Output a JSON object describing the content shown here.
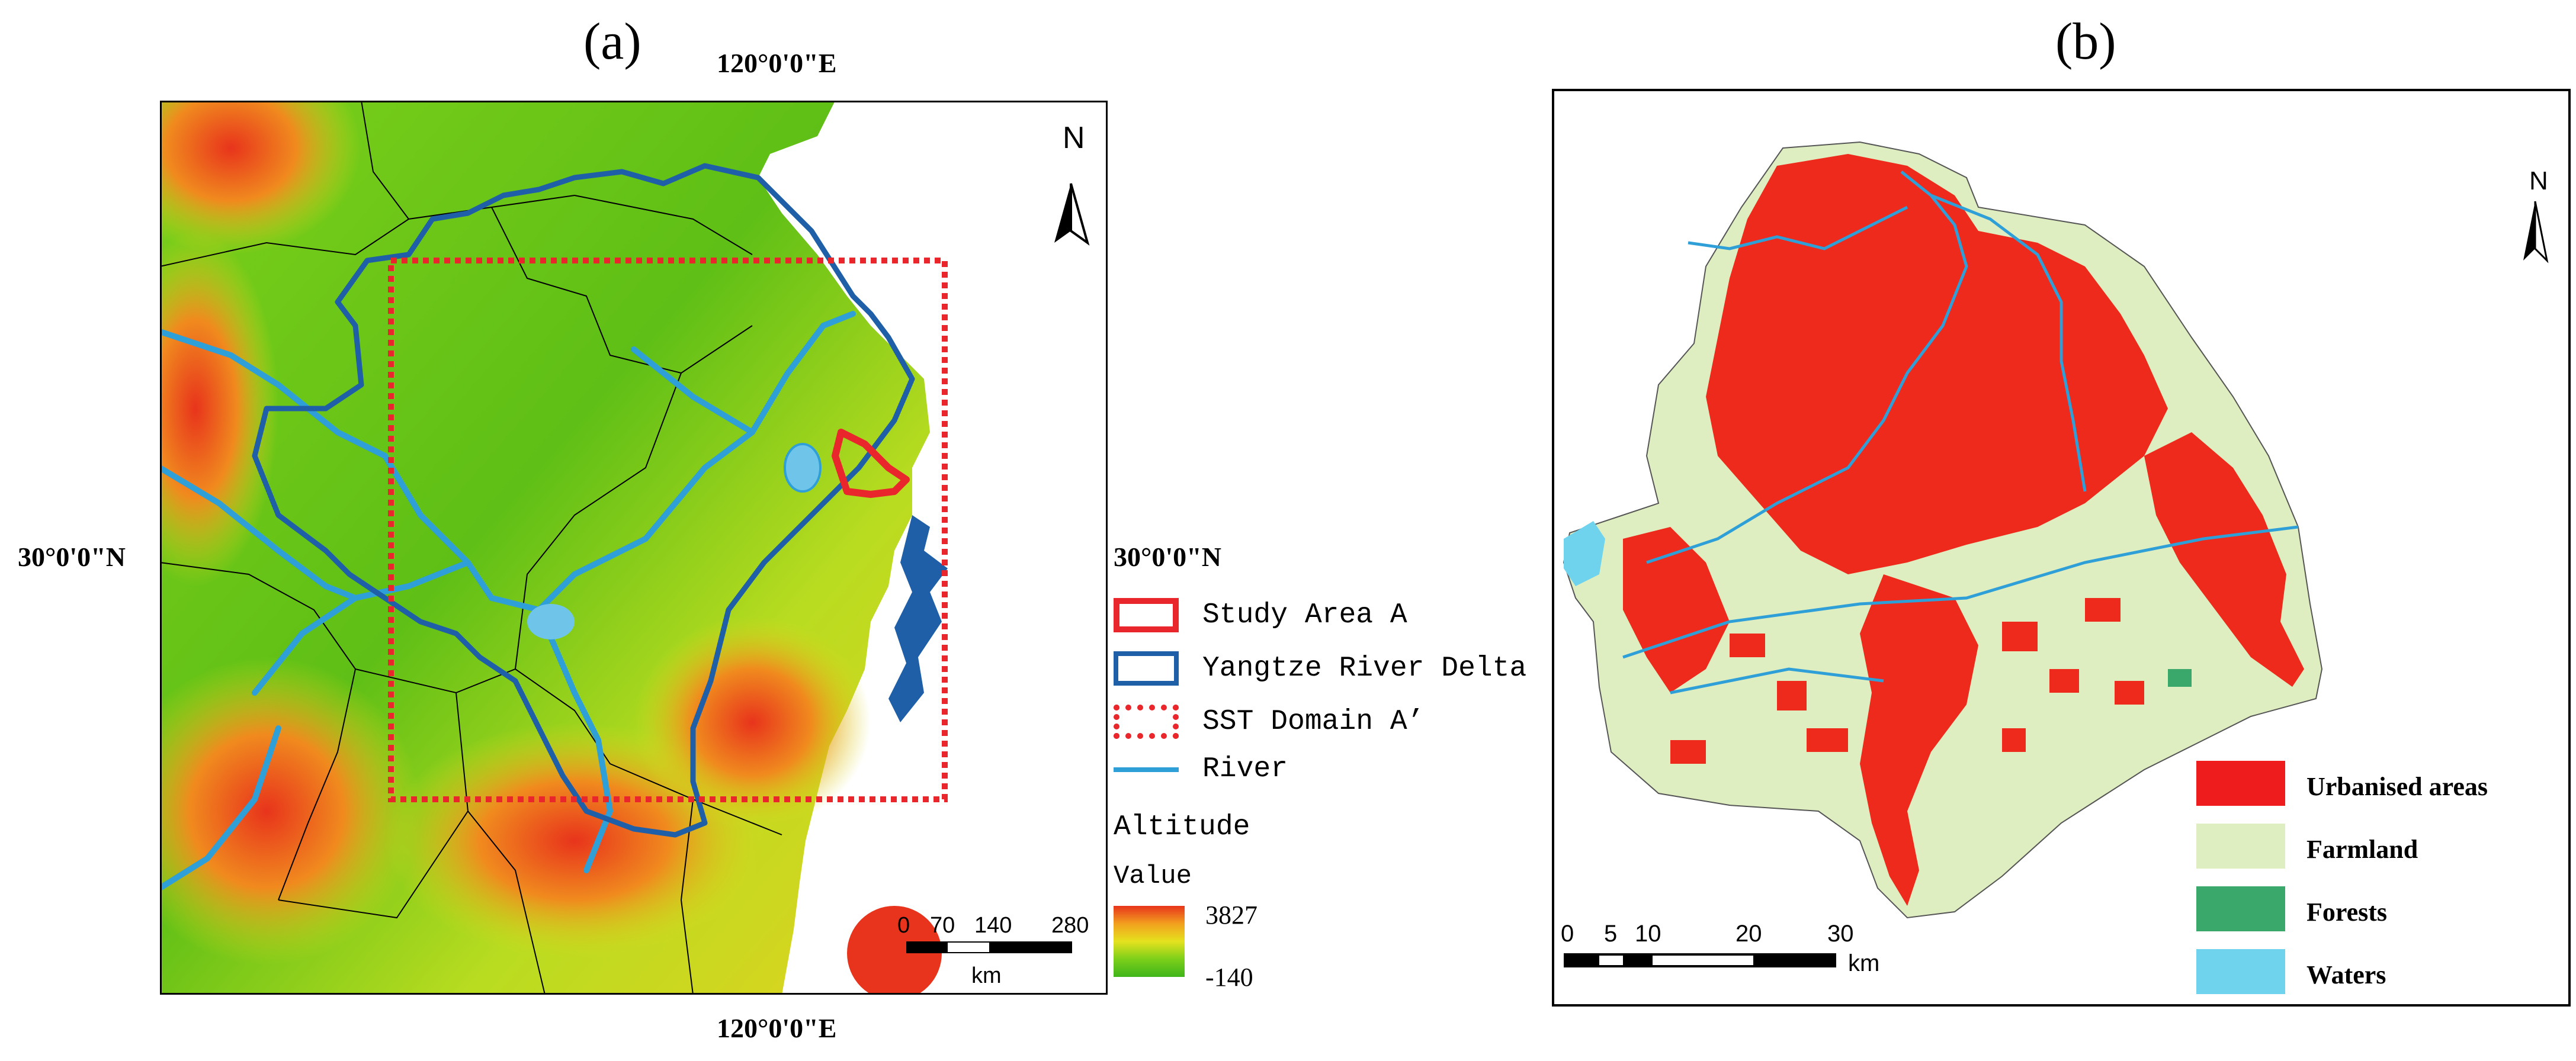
{
  "panel_a": {
    "label": "(a)",
    "coord_top": "120°0'0\"E",
    "coord_bottom": "120°0'0\"E",
    "coord_left": "30°0'0\"N",
    "coord_right": "30°0'0\"N",
    "north": "N",
    "legend": {
      "items": [
        {
          "label": "Study Area A",
          "color": "#e8262b",
          "style": "solid"
        },
        {
          "label": "Yangtze River Delta",
          "color": "#1f5fa8",
          "style": "solid"
        },
        {
          "label": "SST Domain A’",
          "color": "#e8262b",
          "style": "dotted"
        },
        {
          "label": "River",
          "color": "#2f9fd8",
          "style": "line"
        }
      ],
      "altitude_title": "Altitude",
      "value_title": "Value",
      "max": "3827",
      "min": "-140"
    },
    "scale": {
      "ticks": [
        "0",
        "70",
        "140",
        "280"
      ],
      "unit": "km"
    }
  },
  "panel_b": {
    "label": "(b)",
    "north": "N",
    "legend": [
      {
        "label": "Urbanised areas",
        "color": "#ee1c1c"
      },
      {
        "label": "Farmland",
        "color": "#dfeec0"
      },
      {
        "label": "Forests",
        "color": "#3aa86b"
      },
      {
        "label": "Waters",
        "color": "#6fd3ee"
      }
    ],
    "scale": {
      "ticks": [
        "0",
        "5",
        "10",
        "20",
        "30"
      ],
      "unit": "km"
    }
  }
}
